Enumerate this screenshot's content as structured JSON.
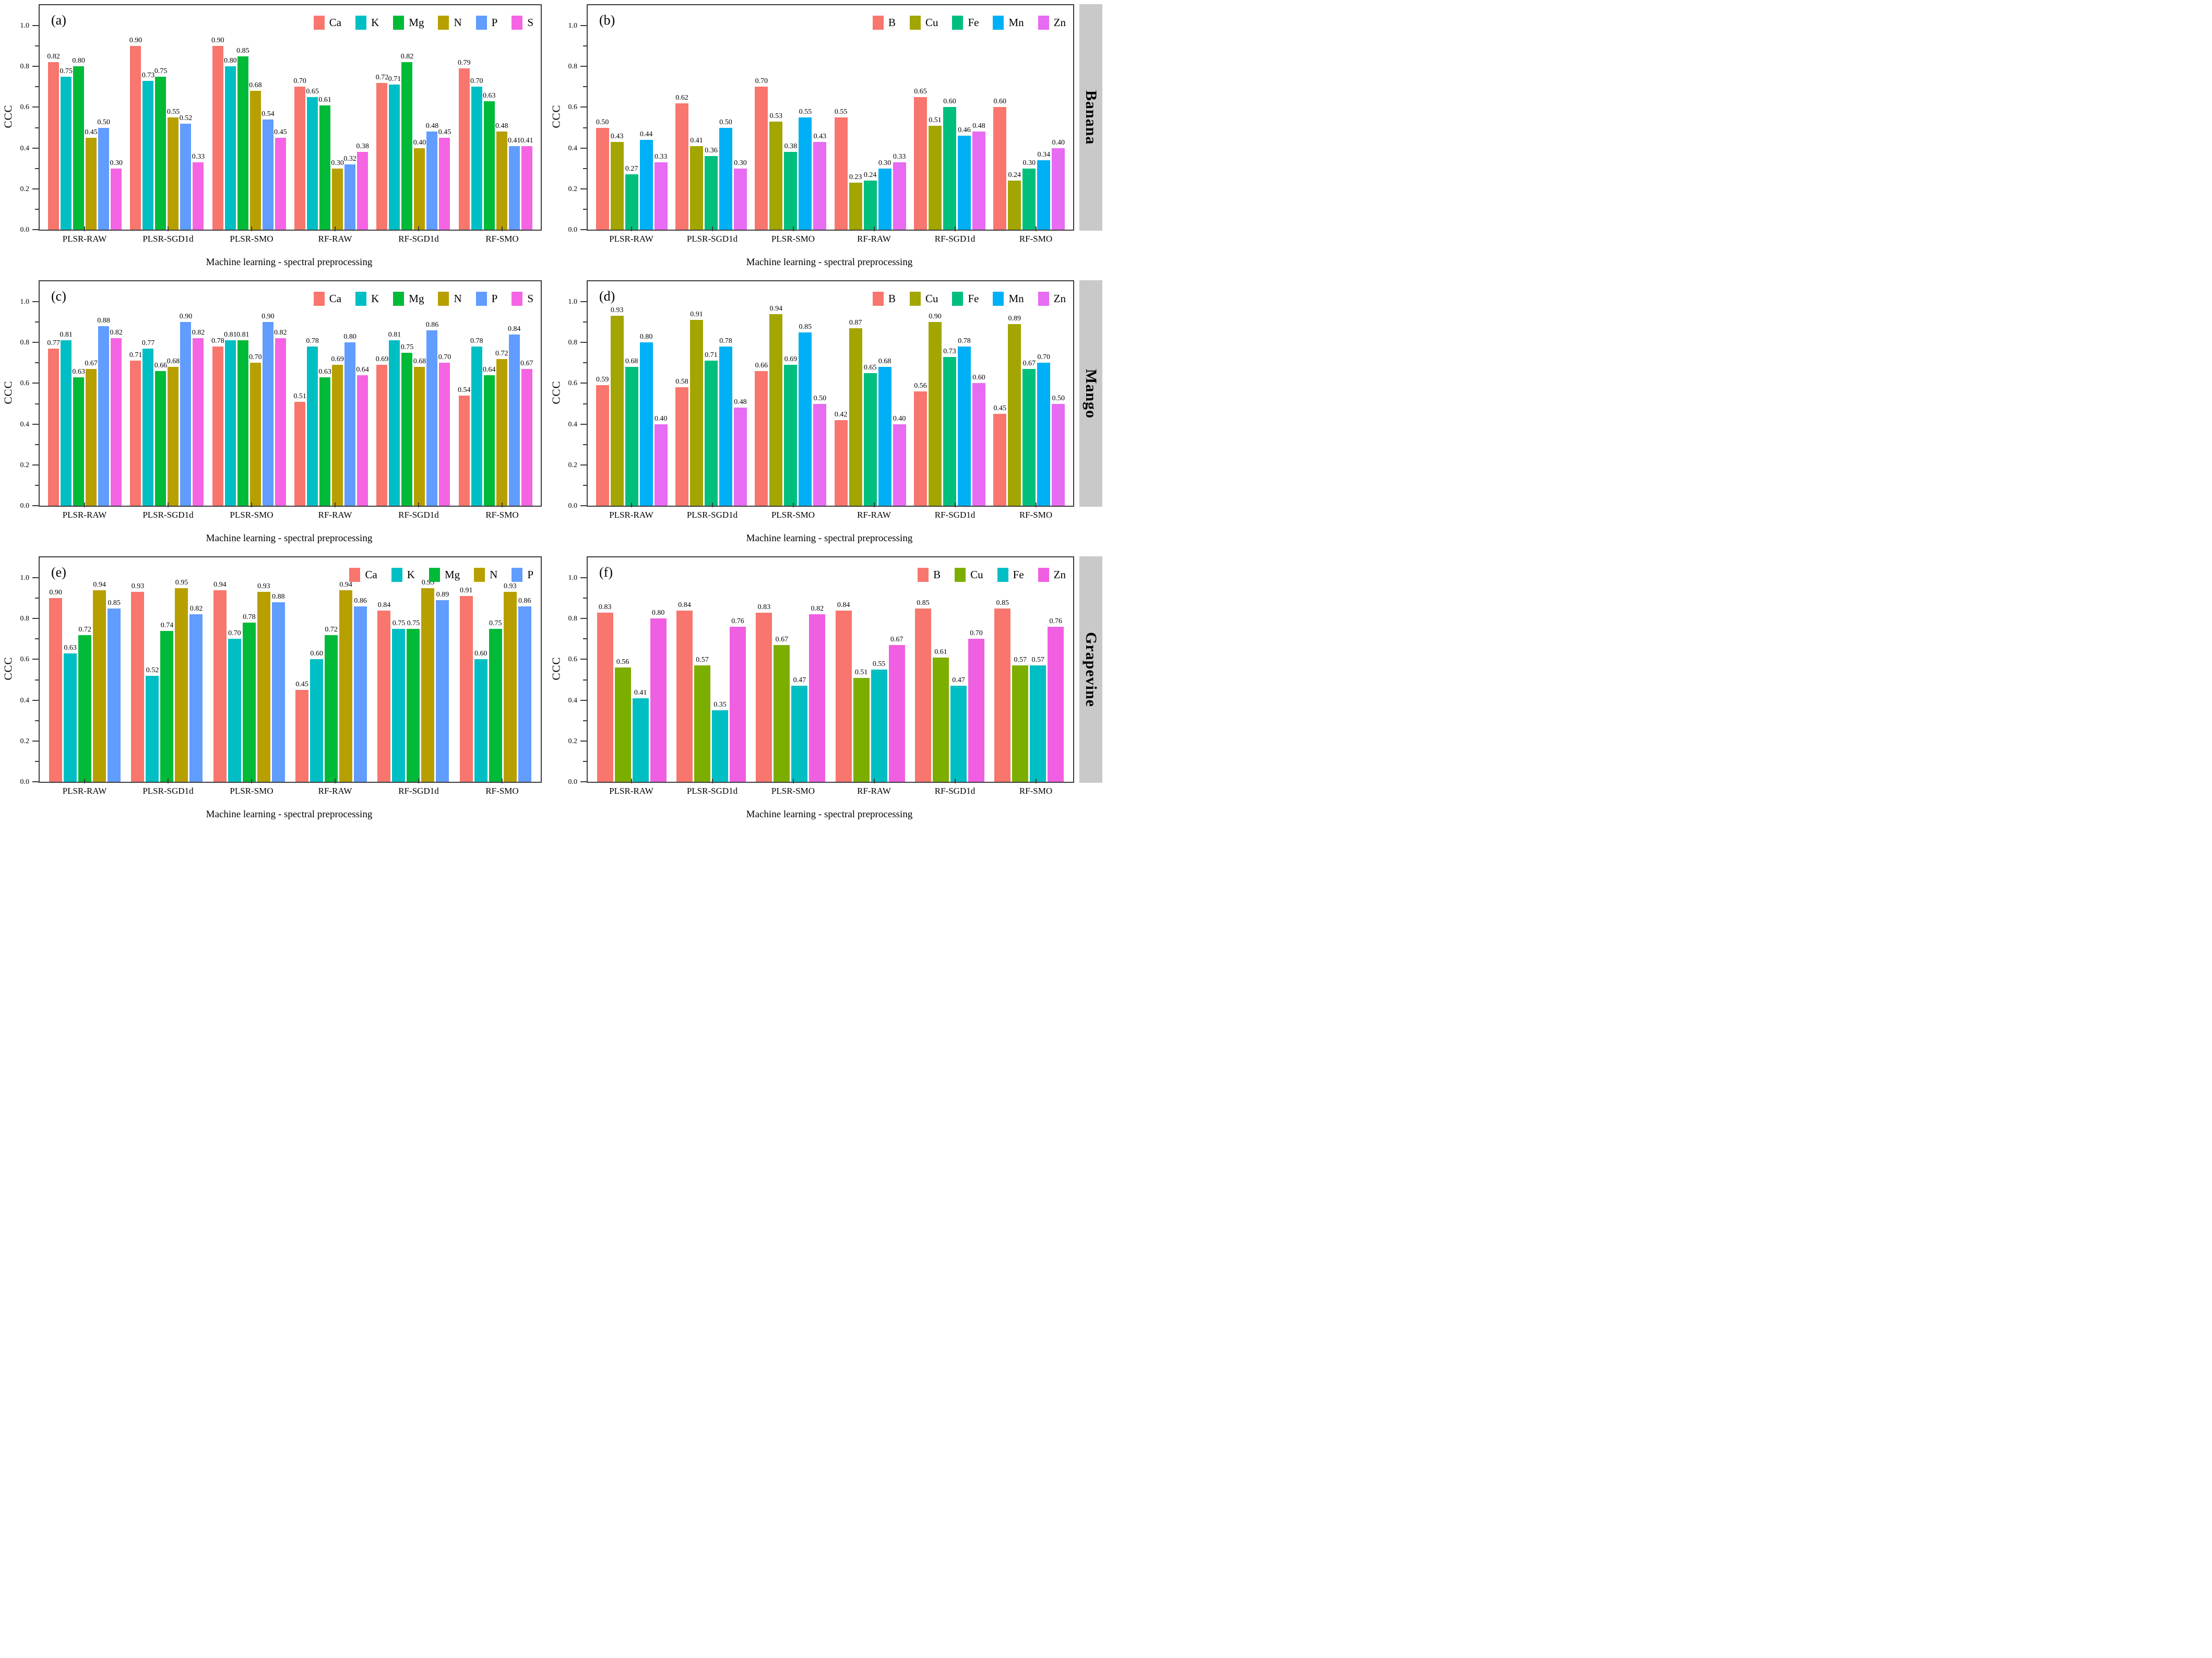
{
  "figure_type": "grouped-bar-chart-grid",
  "rows_strip_labels": [
    "Banana",
    "Mango",
    "Grapevine"
  ],
  "strip_background": "#c9c9c9",
  "axis_color": "#3d3d3d",
  "chart_data": [
    {
      "id": "a",
      "panel_label": "(a)",
      "fruit": "Banana",
      "nutrient_group": "macronutrients",
      "type": "bar",
      "legend_position": "top-right-inside",
      "grid": false,
      "xlabel": "Machine learning - spectral preprocessing",
      "ylabel": "CCC",
      "ylim": [
        0,
        1.1
      ],
      "yticks": [
        "0.0",
        "0.2",
        "0.4",
        "0.6",
        "0.8",
        "1.0"
      ],
      "categories": [
        "PLSR-RAW",
        "PLSR-SGD1d",
        "PLSR-SMO",
        "RF-RAW",
        "RF-SGD1d",
        "RF-SMO"
      ],
      "series": [
        {
          "name": "Ca",
          "color": "#F8766D",
          "values": [
            0.82,
            0.9,
            0.9,
            0.7,
            0.72,
            0.79
          ]
        },
        {
          "name": "K",
          "color": "#00BFC4",
          "values": [
            0.75,
            0.73,
            0.8,
            0.65,
            0.71,
            0.7
          ]
        },
        {
          "name": "Mg",
          "color": "#00BA38",
          "values": [
            0.8,
            0.75,
            0.85,
            0.61,
            0.82,
            0.63
          ]
        },
        {
          "name": "N",
          "color": "#B79F00",
          "values": [
            0.45,
            0.55,
            0.68,
            0.3,
            0.4,
            0.48
          ]
        },
        {
          "name": "P",
          "color": "#619CFF",
          "values": [
            0.5,
            0.52,
            0.54,
            0.32,
            0.48,
            0.41
          ]
        },
        {
          "name": "S",
          "color": "#F564E3",
          "values": [
            0.3,
            0.33,
            0.45,
            0.38,
            0.45,
            0.41
          ]
        }
      ]
    },
    {
      "id": "b",
      "panel_label": "(b)",
      "fruit": "Banana",
      "nutrient_group": "micronutrients",
      "type": "bar",
      "legend_position": "top-right-inside",
      "grid": false,
      "xlabel": "Machine learning - spectral preprocessing",
      "ylabel": "CCC",
      "ylim": [
        0,
        1.1
      ],
      "yticks": [
        "0.0",
        "0.2",
        "0.4",
        "0.6",
        "0.8",
        "1.0"
      ],
      "categories": [
        "PLSR-RAW",
        "PLSR-SGD1d",
        "PLSR-SMO",
        "RF-RAW",
        "RF-SGD1d",
        "RF-SMO"
      ],
      "series": [
        {
          "name": "B",
          "color": "#F8766D",
          "values": [
            0.5,
            0.62,
            0.7,
            0.55,
            0.65,
            0.6
          ]
        },
        {
          "name": "Cu",
          "color": "#A3A500",
          "values": [
            0.43,
            0.41,
            0.53,
            0.23,
            0.51,
            0.24
          ]
        },
        {
          "name": "Fe",
          "color": "#00BF7D",
          "values": [
            0.27,
            0.36,
            0.38,
            0.24,
            0.6,
            0.3
          ]
        },
        {
          "name": "Mn",
          "color": "#00B0F6",
          "values": [
            0.44,
            0.5,
            0.55,
            0.3,
            0.46,
            0.34
          ]
        },
        {
          "name": "Zn",
          "color": "#E76BF3",
          "values": [
            0.33,
            0.3,
            0.43,
            0.33,
            0.48,
            0.4
          ]
        }
      ]
    },
    {
      "id": "c",
      "panel_label": "(c)",
      "fruit": "Mango",
      "nutrient_group": "macronutrients",
      "type": "bar",
      "legend_position": "top-right-inside",
      "grid": false,
      "xlabel": "Machine learning - spectral preprocessing",
      "ylabel": "CCC",
      "ylim": [
        0,
        1.1
      ],
      "yticks": [
        "0.0",
        "0.2",
        "0.4",
        "0.6",
        "0.8",
        "1.0"
      ],
      "categories": [
        "PLSR-RAW",
        "PLSR-SGD1d",
        "PLSR-SMO",
        "RF-RAW",
        "RF-SGD1d",
        "RF-SMO"
      ],
      "series": [
        {
          "name": "Ca",
          "color": "#F8766D",
          "values": [
            0.77,
            0.71,
            0.78,
            0.51,
            0.69,
            0.54
          ]
        },
        {
          "name": "K",
          "color": "#00BFC4",
          "values": [
            0.81,
            0.77,
            0.81,
            0.78,
            0.81,
            0.78
          ]
        },
        {
          "name": "Mg",
          "color": "#00BA38",
          "values": [
            0.63,
            0.66,
            0.81,
            0.63,
            0.75,
            0.64
          ]
        },
        {
          "name": "N",
          "color": "#B79F00",
          "values": [
            0.67,
            0.68,
            0.7,
            0.69,
            0.68,
            0.72
          ]
        },
        {
          "name": "P",
          "color": "#619CFF",
          "values": [
            0.88,
            0.9,
            0.9,
            0.8,
            0.86,
            0.84
          ]
        },
        {
          "name": "S",
          "color": "#F564E3",
          "values": [
            0.82,
            0.82,
            0.82,
            0.64,
            0.7,
            0.67
          ]
        }
      ]
    },
    {
      "id": "d",
      "panel_label": "(d)",
      "fruit": "Mango",
      "nutrient_group": "micronutrients",
      "type": "bar",
      "legend_position": "top-right-inside",
      "grid": false,
      "xlabel": "Machine learning - spectral preprocessing",
      "ylabel": "CCC",
      "ylim": [
        0,
        1.1
      ],
      "yticks": [
        "0.0",
        "0.2",
        "0.4",
        "0.6",
        "0.8",
        "1.0"
      ],
      "categories": [
        "PLSR-RAW",
        "PLSR-SGD1d",
        "PLSR-SMO",
        "RF-RAW",
        "RF-SGD1d",
        "RF-SMO"
      ],
      "series": [
        {
          "name": "B",
          "color": "#F8766D",
          "values": [
            0.59,
            0.58,
            0.66,
            0.42,
            0.56,
            0.45
          ]
        },
        {
          "name": "Cu",
          "color": "#A3A500",
          "values": [
            0.93,
            0.91,
            0.94,
            0.87,
            0.9,
            0.89
          ]
        },
        {
          "name": "Fe",
          "color": "#00BF7D",
          "values": [
            0.68,
            0.71,
            0.69,
            0.65,
            0.73,
            0.67
          ]
        },
        {
          "name": "Mn",
          "color": "#00B0F6",
          "values": [
            0.8,
            0.78,
            0.85,
            0.68,
            0.78,
            0.7
          ]
        },
        {
          "name": "Zn",
          "color": "#E76BF3",
          "values": [
            0.4,
            0.48,
            0.5,
            0.4,
            0.6,
            0.5
          ]
        }
      ]
    },
    {
      "id": "e",
      "panel_label": "(e)",
      "fruit": "Grapevine",
      "nutrient_group": "macronutrients",
      "type": "bar",
      "legend_position": "top-right-inside",
      "grid": false,
      "xlabel": "Machine learning - spectral preprocessing",
      "ylabel": "CCC",
      "ylim": [
        0,
        1.1
      ],
      "yticks": [
        "0.0",
        "0.2",
        "0.4",
        "0.6",
        "0.8",
        "1.0"
      ],
      "categories": [
        "PLSR-RAW",
        "PLSR-SGD1d",
        "PLSR-SMO",
        "RF-RAW",
        "RF-SGD1d",
        "RF-SMO"
      ],
      "series": [
        {
          "name": "Ca",
          "color": "#F8766D",
          "values": [
            0.9,
            0.93,
            0.94,
            0.45,
            0.84,
            0.91
          ]
        },
        {
          "name": "K",
          "color": "#00BFC4",
          "values": [
            0.63,
            0.52,
            0.7,
            0.6,
            0.75,
            0.6
          ]
        },
        {
          "name": "Mg",
          "color": "#00BA38",
          "values": [
            0.72,
            0.74,
            0.78,
            0.72,
            0.75,
            0.75
          ]
        },
        {
          "name": "N",
          "color": "#B79F00",
          "values": [
            0.94,
            0.95,
            0.93,
            0.94,
            0.95,
            0.93
          ]
        },
        {
          "name": "P",
          "color": "#619CFF",
          "values": [
            0.85,
            0.82,
            0.88,
            0.86,
            0.89,
            0.86
          ]
        }
      ]
    },
    {
      "id": "f",
      "panel_label": "(f)",
      "fruit": "Grapevine",
      "nutrient_group": "micronutrients",
      "type": "bar",
      "legend_position": "top-right-inside",
      "grid": false,
      "xlabel": "Machine learning - spectral preprocessing",
      "ylabel": "CCC",
      "ylim": [
        0,
        1.1
      ],
      "yticks": [
        "0.0",
        "0.2",
        "0.4",
        "0.6",
        "0.8",
        "1.0"
      ],
      "categories": [
        "PLSR-RAW",
        "PLSR-SGD1d",
        "PLSR-SMO",
        "RF-RAW",
        "RF-SGD1d",
        "RF-SMO"
      ],
      "series": [
        {
          "name": "B",
          "color": "#F8766D",
          "values": [
            0.83,
            0.84,
            0.83,
            0.84,
            0.85,
            0.85
          ]
        },
        {
          "name": "Cu",
          "color": "#7CAE00",
          "values": [
            0.56,
            0.57,
            0.67,
            0.51,
            0.61,
            0.57
          ]
        },
        {
          "name": "Fe",
          "color": "#00BFC4",
          "values": [
            0.41,
            0.35,
            0.47,
            0.55,
            0.47,
            0.57
          ]
        },
        {
          "name": "Zn",
          "color": "#F05EE2",
          "values": [
            0.8,
            0.76,
            0.82,
            0.67,
            0.7,
            0.76
          ]
        }
      ]
    }
  ]
}
